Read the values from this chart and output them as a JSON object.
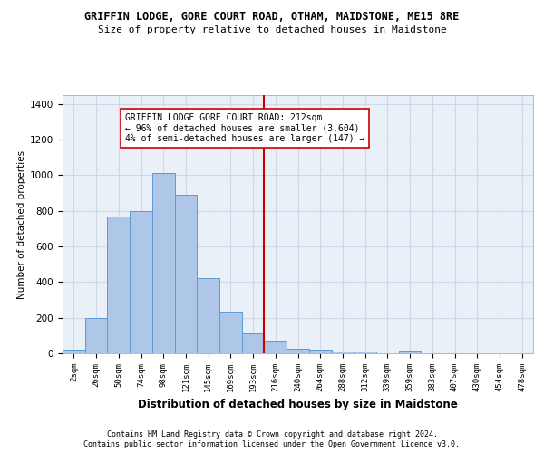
{
  "title": "GRIFFIN LODGE, GORE COURT ROAD, OTHAM, MAIDSTONE, ME15 8RE",
  "subtitle": "Size of property relative to detached houses in Maidstone",
  "xlabel": "Distribution of detached houses by size in Maidstone",
  "ylabel": "Number of detached properties",
  "footer1": "Contains HM Land Registry data © Crown copyright and database right 2024.",
  "footer2": "Contains public sector information licensed under the Open Government Licence v3.0.",
  "bar_labels": [
    "2sqm",
    "26sqm",
    "50sqm",
    "74sqm",
    "98sqm",
    "121sqm",
    "145sqm",
    "169sqm",
    "193sqm",
    "216sqm",
    "240sqm",
    "264sqm",
    "288sqm",
    "312sqm",
    "339sqm",
    "359sqm",
    "383sqm",
    "407sqm",
    "430sqm",
    "454sqm",
    "478sqm"
  ],
  "bar_values": [
    20,
    200,
    770,
    800,
    1010,
    890,
    420,
    235,
    110,
    70,
    25,
    20,
    12,
    10,
    0,
    15,
    0,
    0,
    0,
    0,
    0
  ],
  "bar_color": "#aec6e8",
  "bar_edgecolor": "#5b9bd5",
  "grid_color": "#d0d8e8",
  "bg_color": "#eaf0f8",
  "property_line_color": "#cc0000",
  "annotation_text": "GRIFFIN LODGE GORE COURT ROAD: 212sqm\n← 96% of detached houses are smaller (3,604)\n4% of semi-detached houses are larger (147) →",
  "annotation_box_color": "#ffffff",
  "annotation_box_edgecolor": "#cc0000",
  "ylim": [
    0,
    1450
  ],
  "prop_bin_index": 8.5
}
